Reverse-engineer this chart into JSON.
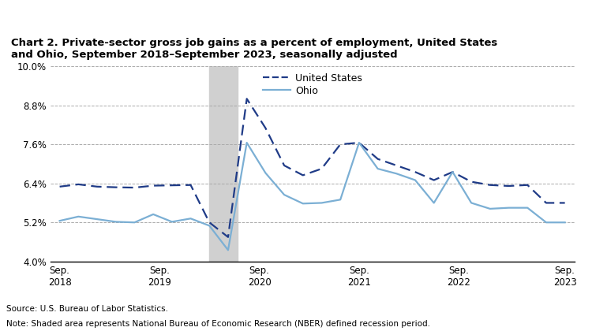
{
  "title_line1": "Chart 2. Private-sector gross job gains as a percent of employment, United States",
  "title_line2": "and Ohio, September 2018–September 2023, seasonally adjusted",
  "us_data": [
    6.3,
    6.37,
    6.3,
    6.28,
    6.27,
    6.33,
    6.34,
    6.35,
    5.2,
    4.75,
    9.0,
    8.1,
    6.95,
    6.65,
    6.85,
    7.6,
    7.65,
    7.15,
    6.95,
    6.75,
    6.5,
    6.75,
    6.45,
    6.35,
    6.32,
    6.35,
    5.8,
    5.8
  ],
  "ohio_data": [
    5.25,
    5.38,
    5.3,
    5.22,
    5.2,
    5.45,
    5.22,
    5.32,
    5.1,
    4.35,
    7.65,
    6.72,
    6.05,
    5.78,
    5.8,
    5.9,
    7.65,
    6.85,
    6.7,
    6.5,
    5.8,
    6.75,
    5.8,
    5.62,
    5.65,
    5.65,
    5.2,
    5.2
  ],
  "recession_xmin": 8.0,
  "recession_xmax": 9.5,
  "ylim": [
    4.0,
    10.0
  ],
  "yticks": [
    4.0,
    5.2,
    6.4,
    7.6,
    8.8,
    10.0
  ],
  "ytick_labels": [
    "4.0%",
    "5.2%",
    "6.4%",
    "7.6%",
    "8.8%",
    "10.0%"
  ],
  "xtick_positions": [
    0,
    5.33,
    10.67,
    16.0,
    21.33,
    27.0
  ],
  "xtick_labels": [
    "Sep.\n2018",
    "Sep.\n2019",
    "Sep.\n2020",
    "Sep.\n2021",
    "Sep.\n2022",
    "Sep.\n2023"
  ],
  "us_color": "#1f3b87",
  "ohio_color": "#7bafd4",
  "recession_color": "#d0d0d0",
  "source_text": "Source: U.S. Bureau of Labor Statistics.",
  "note_text": "Note: Shaded area represents National Bureau of Economic Research (NBER) defined recession period.",
  "legend_us": "United States",
  "legend_ohio": "Ohio"
}
